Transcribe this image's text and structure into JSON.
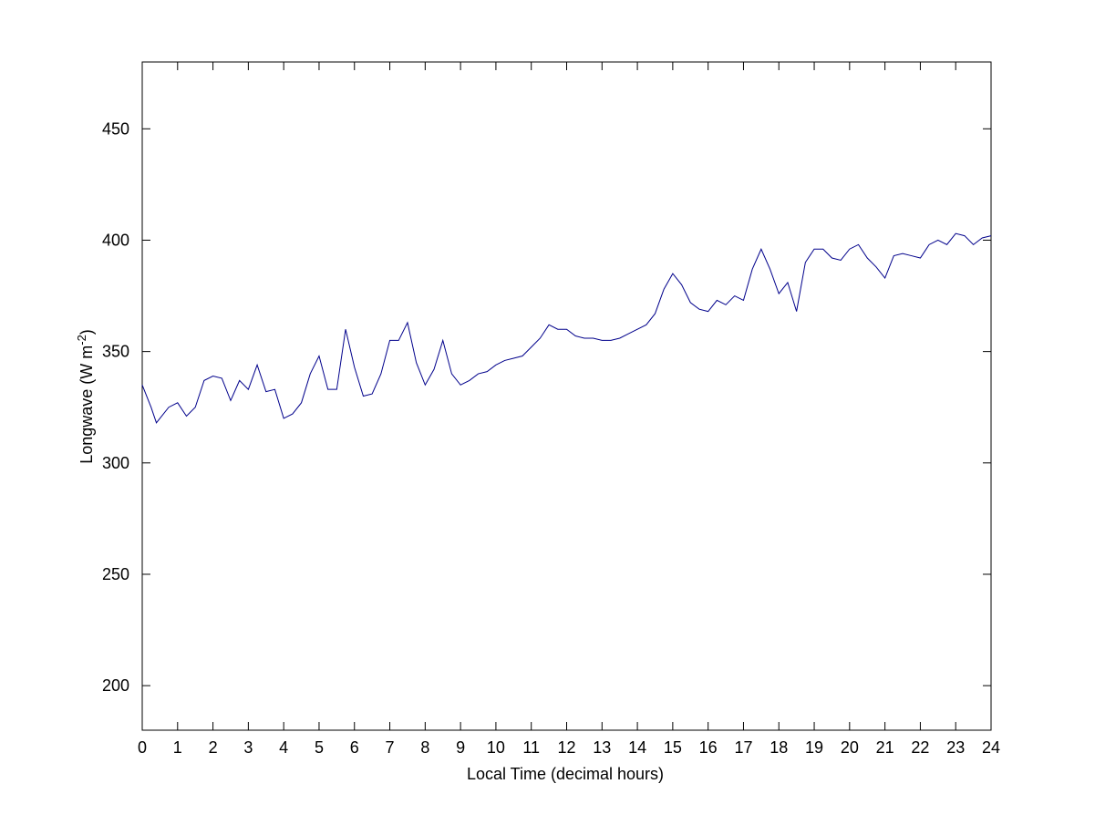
{
  "chart_data": {
    "type": "line",
    "xlabel": "Local Time (decimal hours)",
    "ylabel": {
      "main": "Longwave (W m",
      "superscript": "-2",
      "end": ")"
    },
    "color": "#00008b",
    "x": [
      0,
      0.25,
      0.4,
      0.5,
      0.75,
      1,
      1.25,
      1.5,
      1.75,
      2,
      2.25,
      2.5,
      2.75,
      3,
      3.25,
      3.5,
      3.75,
      4,
      4.25,
      4.5,
      4.75,
      5,
      5.25,
      5.5,
      5.75,
      6,
      6.25,
      6.5,
      6.75,
      7,
      7.25,
      7.5,
      7.75,
      8,
      8.25,
      8.5,
      8.75,
      9,
      9.25,
      9.5,
      9.75,
      10,
      10.25,
      10.5,
      10.75,
      11,
      11.25,
      11.5,
      11.75,
      12,
      12.25,
      12.5,
      12.75,
      13,
      13.25,
      13.5,
      13.75,
      14,
      14.25,
      14.5,
      14.75,
      15,
      15.25,
      15.5,
      15.75,
      16,
      16.25,
      16.5,
      16.75,
      17,
      17.25,
      17.5,
      17.75,
      18,
      18.25,
      18.5,
      18.75,
      19,
      19.25,
      19.5,
      19.75,
      20,
      20.25,
      20.5,
      20.75,
      21,
      21.25,
      21.5,
      21.75,
      22,
      22.25,
      22.5,
      22.75,
      23,
      23.25,
      23.5,
      23.75,
      24
    ],
    "values": [
      335,
      325,
      318,
      320,
      325,
      327,
      321,
      325,
      337,
      339,
      338,
      328,
      337,
      333,
      344,
      332,
      333,
      320,
      322,
      327,
      340,
      348,
      333,
      333,
      360,
      343,
      330,
      331,
      340,
      355,
      355,
      363,
      345,
      335,
      342,
      355,
      340,
      335,
      337,
      340,
      341,
      344,
      346,
      347,
      348,
      352,
      356,
      362,
      360,
      360,
      357,
      356,
      356,
      355,
      355,
      356,
      358,
      360,
      362,
      367,
      378,
      385,
      380,
      372,
      369,
      368,
      373,
      371,
      375,
      373,
      387,
      396,
      387,
      376,
      381,
      368,
      390,
      396,
      396,
      392,
      391,
      396,
      398,
      392,
      388,
      383,
      393,
      394,
      393,
      392,
      398,
      400,
      398,
      403,
      402,
      398,
      401,
      402
    ],
    "xlim": [
      0,
      24
    ],
    "ylim": [
      180,
      480
    ],
    "xticks": [
      0,
      1,
      2,
      3,
      4,
      5,
      6,
      7,
      8,
      9,
      10,
      11,
      12,
      13,
      14,
      15,
      16,
      17,
      18,
      19,
      20,
      21,
      22,
      23,
      24
    ],
    "yticks": [
      200,
      250,
      300,
      350,
      400,
      450
    ],
    "grid": false
  }
}
